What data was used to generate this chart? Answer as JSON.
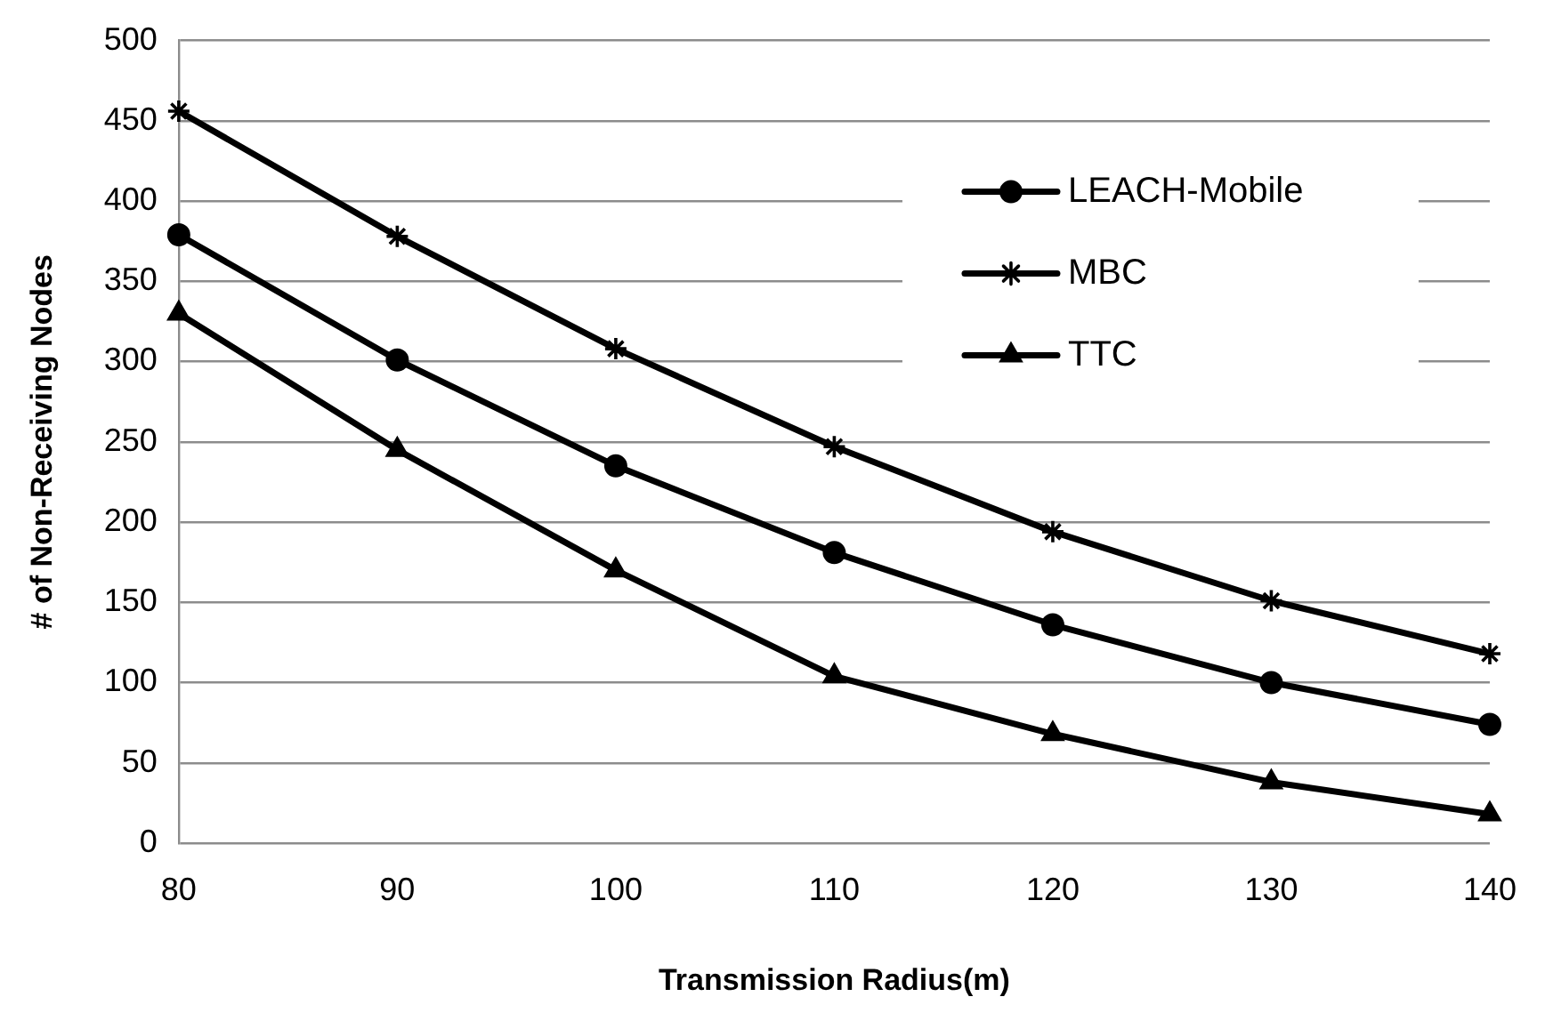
{
  "chart_data": {
    "type": "line",
    "xlabel": "Transmission Radius(m)",
    "ylabel": "# of Non-Receiving Nodes",
    "categories": [
      "80",
      "90",
      "100",
      "110",
      "120",
      "130",
      "140"
    ],
    "ylim": [
      0,
      500
    ],
    "yticks": [
      0,
      50,
      100,
      150,
      200,
      250,
      300,
      350,
      400,
      450,
      500
    ],
    "grid": "y",
    "legend": "top right",
    "line_style": "solid",
    "series": [
      {
        "name": "LEACH-Mobile",
        "color": "#000000",
        "marker": "circle",
        "values": [
          379,
          301,
          235,
          181,
          136,
          100,
          74
        ]
      },
      {
        "name": "MBC",
        "color": "#000000",
        "marker": "cross",
        "values": [
          456,
          378,
          308,
          247,
          194,
          151,
          118
        ]
      },
      {
        "name": "TTC",
        "color": "#000000",
        "marker": "triangle",
        "values": [
          330,
          245,
          170,
          104,
          68,
          38,
          18
        ]
      }
    ]
  }
}
